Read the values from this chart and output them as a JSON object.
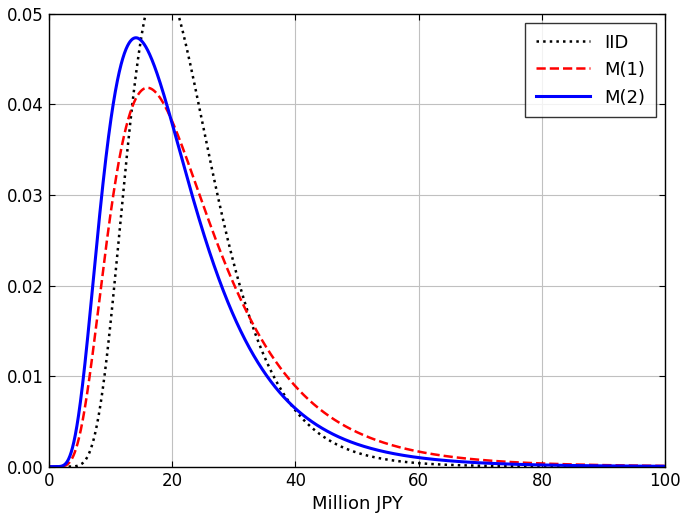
{
  "title": "",
  "xlabel": "Million JPY",
  "ylabel": "",
  "xlim": [
    0,
    100
  ],
  "ylim": [
    0,
    0.05
  ],
  "yticks": [
    0,
    0.01,
    0.02,
    0.03,
    0.04,
    0.05
  ],
  "xticks": [
    0,
    20,
    40,
    60,
    80,
    100
  ],
  "iid_color": "#000000",
  "m1_color": "#ff0000",
  "m2_color": "#0000ff",
  "iid_label": "IID",
  "m1_label": "M(1)",
  "m2_label": "M(2)",
  "iid_lw": 1.8,
  "m1_lw": 1.8,
  "m2_lw": 2.2,
  "iid_mu": 3.044,
  "iid_sigma": 0.38,
  "m1_mu": 3.044,
  "m1_sigma": 0.52,
  "m2_mu": 2.92,
  "m2_sigma": 0.52,
  "legend_fontsize": 13,
  "tick_fontsize": 12,
  "xlabel_fontsize": 13,
  "background_color": "#ffffff",
  "grid_color": "#c0c0c0"
}
